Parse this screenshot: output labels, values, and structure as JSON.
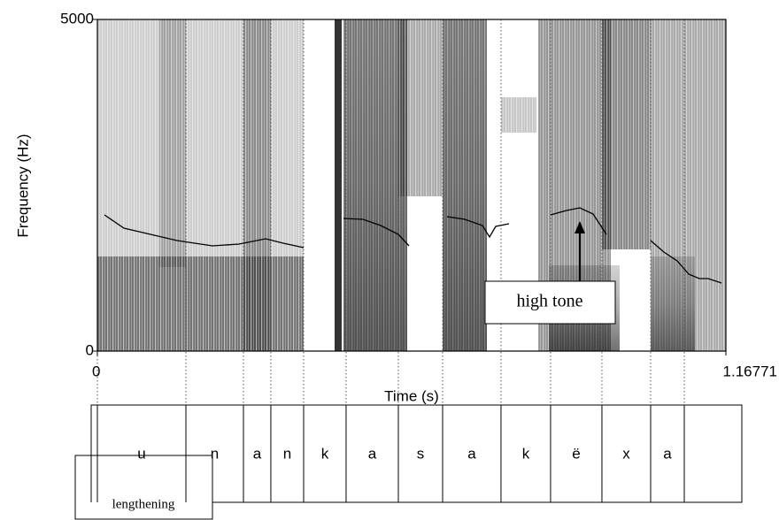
{
  "chart_data": {
    "type": "spectrogram",
    "xlabel": "Time (s)",
    "ylabel": "Frequency (Hz)",
    "xlim": [
      0,
      1.16771
    ],
    "ylim": [
      0,
      5000
    ],
    "xticks": [
      0,
      1.16771
    ],
    "yticks": [
      0,
      5000
    ],
    "color": "#000000",
    "x": [
      0.0132,
      0.0493,
      0.0987,
      0.148,
      0.2138,
      0.2631,
      0.3125,
      0.3454,
      0.3832,
      null,
      0.4572,
      0.4934,
      0.5263,
      0.5592,
      0.5789,
      null,
      0.6496,
      0.6825,
      0.7154,
      0.7286,
      0.7401,
      0.7647,
      null,
      0.842,
      0.8716,
      0.8963,
      0.921,
      0.9456,
      null,
      1.0279,
      1.0525,
      1.0772,
      1.0986,
      1.1183,
      1.1348,
      1.1595
    ],
    "values": [
      2053,
      1853,
      1760,
      1667,
      1587,
      1613,
      1693,
      1627,
      1560,
      null,
      2000,
      1987,
      1893,
      1760,
      1587,
      null,
      2027,
      1987,
      1893,
      1720,
      1880,
      1920,
      null,
      2053,
      2120,
      2160,
      2067,
      1760,
      null,
      1667,
      1493,
      1360,
      1160,
      1093,
      1093,
      1027
    ],
    "tier": {
      "boundaries": [
        -0.0115,
        0,
        0.1645,
        0.2714,
        0.3223,
        0.3832,
        0.4621,
        0.5592,
        0.6414,
        0.7499,
        0.842,
        0.9374,
        1.0279,
        1.0904,
        1.1973
      ],
      "labels": [
        null,
        "u",
        "n",
        "a",
        "n",
        "k",
        "a",
        "s",
        "a",
        "k",
        "ë",
        "x",
        "a",
        null
      ]
    },
    "annotations": [
      "high tone",
      "lengthening"
    ]
  }
}
